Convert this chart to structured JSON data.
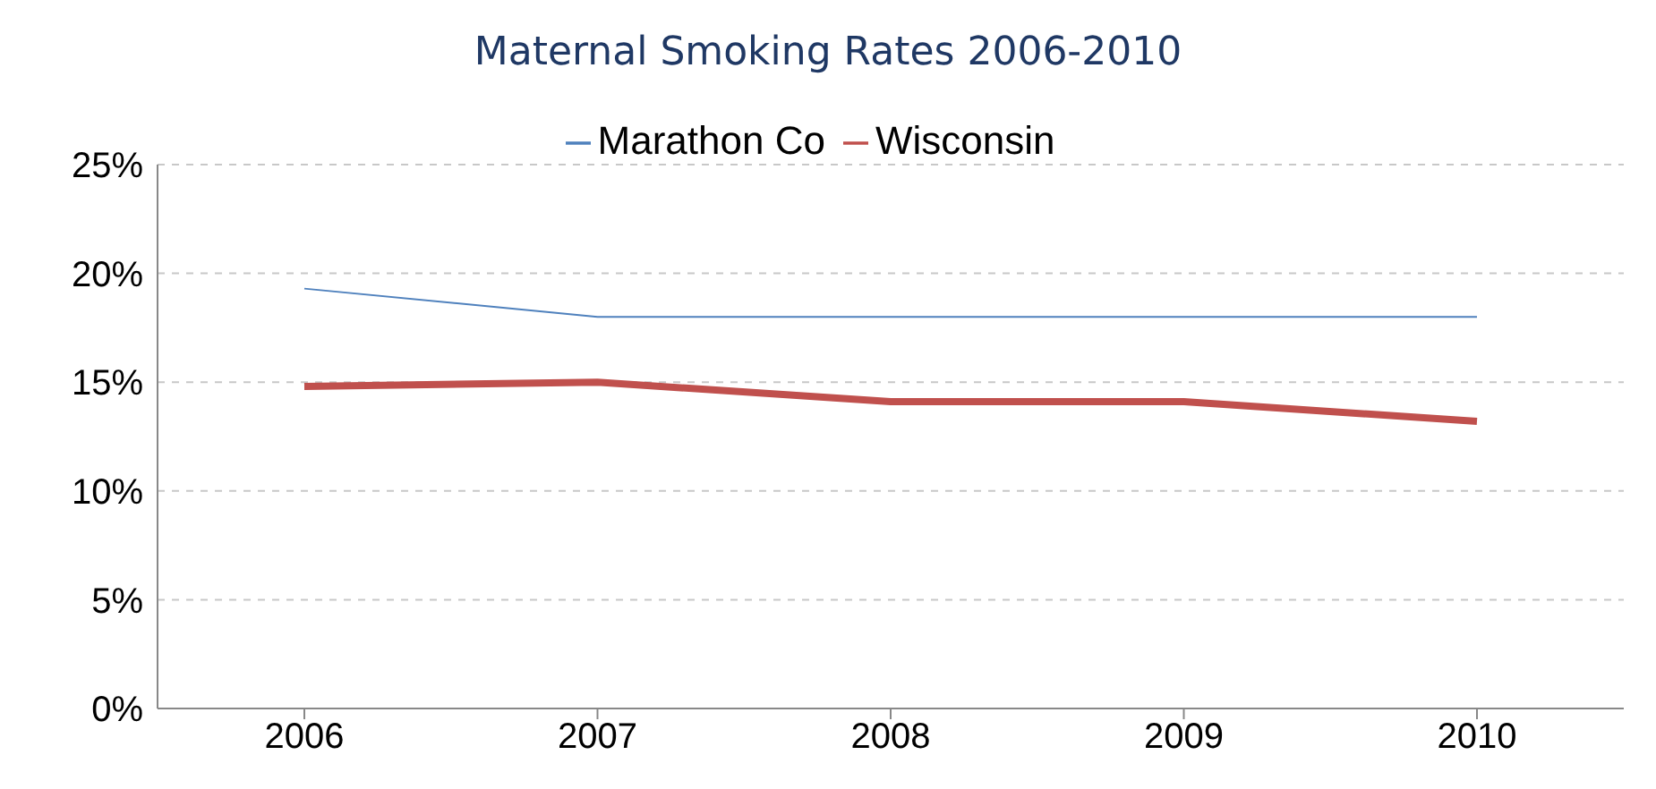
{
  "chart_data": {
    "type": "line",
    "title": "Maternal Smoking Rates 2006-2010",
    "categories": [
      "2006",
      "2007",
      "2008",
      "2009",
      "2010"
    ],
    "series": [
      {
        "name": "Marathon Co",
        "color": "#4f81bd",
        "values": [
          19.3,
          18,
          18,
          18,
          18
        ]
      },
      {
        "name": "Wisconsin",
        "color": "#c0504d",
        "values": [
          14.8,
          15,
          14.1,
          14.1,
          13.2
        ]
      }
    ],
    "ylim": [
      0,
      25
    ],
    "yticks": [
      {
        "value": 0,
        "label": "0%"
      },
      {
        "value": 5,
        "label": "5%"
      },
      {
        "value": 10,
        "label": "10%"
      },
      {
        "value": 15,
        "label": "15%"
      },
      {
        "value": 20,
        "label": "20%"
      },
      {
        "value": 25,
        "label": "25%"
      }
    ],
    "grid": "y",
    "legend": "top",
    "marker": "none",
    "line_style": "solid"
  }
}
